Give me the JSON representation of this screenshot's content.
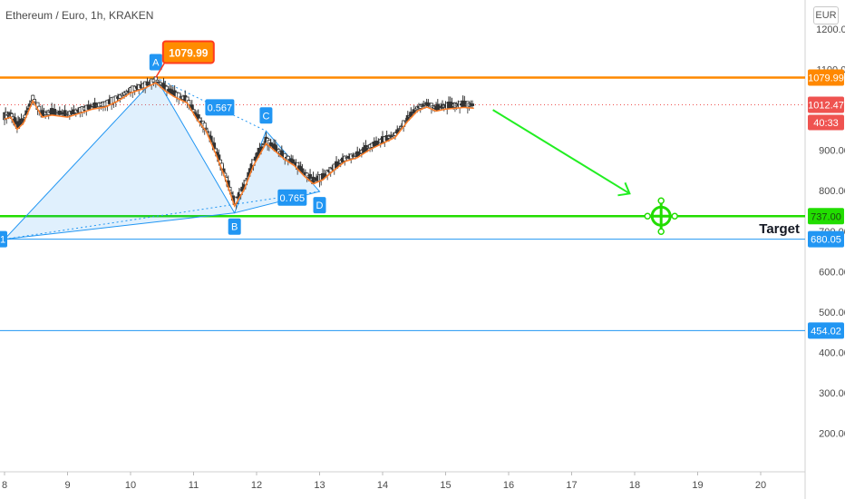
{
  "header": {
    "title": "Ethereum / Euro, 1h, KRAKEN",
    "currency": "EUR"
  },
  "annotations": {
    "target": "Target",
    "peak_label": "1079.99"
  },
  "chart_data": {
    "type": "candlestick",
    "title": "Ethereum / Euro, 1h, KRAKEN",
    "x_ticks": [
      "8",
      "9",
      "10",
      "11",
      "12",
      "13",
      "14",
      "15",
      "16",
      "17",
      "18",
      "19",
      "20"
    ],
    "y_ticks": [
      "1200.00",
      "1100.00",
      "900.00",
      "800.00",
      "700.00",
      "600.00",
      "500.00",
      "400.00",
      "300.00",
      "200.00"
    ],
    "ylim": [
      162,
      1222
    ],
    "xlim": [
      8,
      20.6
    ],
    "price_levels": [
      {
        "label": "1079.99",
        "value": 1079.99,
        "color": "#ff8800"
      },
      {
        "label": "737.00",
        "value": 737.0,
        "color": "#22dd00"
      },
      {
        "label": "680.05",
        "value": 680.05,
        "color": "#2196f3"
      },
      {
        "label": "454.02",
        "value": 454.02,
        "color": "#2196f3"
      }
    ],
    "last_price": {
      "label": "1012.47",
      "value": 1012.47,
      "countdown": "40:33",
      "color": "#ef5350"
    },
    "pattern_points": [
      {
        "label": "A",
        "x": 10.4,
        "y": 1079.99
      },
      {
        "label": "B",
        "x": 11.65,
        "y": 745
      },
      {
        "label": "C",
        "x": 12.15,
        "y": 948
      },
      {
        "label": "D",
        "x": 13.0,
        "y": 798
      }
    ],
    "ratios": [
      {
        "label": "0.567",
        "x": 11.2,
        "y": 1006
      },
      {
        "label": "0.765",
        "x": 12.35,
        "y": 783
      }
    ],
    "projection": {
      "from": {
        "x": 15.75,
        "y": 1000
      },
      "to": {
        "x": 17.92,
        "y": 793
      }
    },
    "target_point": {
      "x": 18.42,
      "y": 737.0
    },
    "price_series": [
      [
        8.0,
        985
      ],
      [
        8.1,
        990
      ],
      [
        8.2,
        960
      ],
      [
        8.3,
        975
      ],
      [
        8.45,
        1030
      ],
      [
        8.6,
        990
      ],
      [
        8.75,
        995
      ],
      [
        9.0,
        990
      ],
      [
        9.2,
        1000
      ],
      [
        9.4,
        1010
      ],
      [
        9.6,
        1015
      ],
      [
        9.8,
        1030
      ],
      [
        10.0,
        1050
      ],
      [
        10.2,
        1060
      ],
      [
        10.4,
        1075
      ],
      [
        10.55,
        1055
      ],
      [
        10.7,
        1040
      ],
      [
        10.9,
        1025
      ],
      [
        11.05,
        985
      ],
      [
        11.2,
        955
      ],
      [
        11.35,
        900
      ],
      [
        11.5,
        840
      ],
      [
        11.65,
        770
      ],
      [
        11.8,
        810
      ],
      [
        11.95,
        870
      ],
      [
        12.15,
        925
      ],
      [
        12.3,
        905
      ],
      [
        12.45,
        885
      ],
      [
        12.6,
        870
      ],
      [
        12.75,
        845
      ],
      [
        12.9,
        825
      ],
      [
        13.05,
        835
      ],
      [
        13.2,
        855
      ],
      [
        13.4,
        880
      ],
      [
        13.6,
        890
      ],
      [
        13.8,
        910
      ],
      [
        14.0,
        925
      ],
      [
        14.2,
        940
      ],
      [
        14.4,
        980
      ],
      [
        14.55,
        1005
      ],
      [
        14.7,
        1015
      ],
      [
        14.85,
        1005
      ],
      [
        15.0,
        1010
      ],
      [
        15.15,
        1012
      ],
      [
        15.3,
        1014
      ],
      [
        15.45,
        1012
      ]
    ]
  }
}
